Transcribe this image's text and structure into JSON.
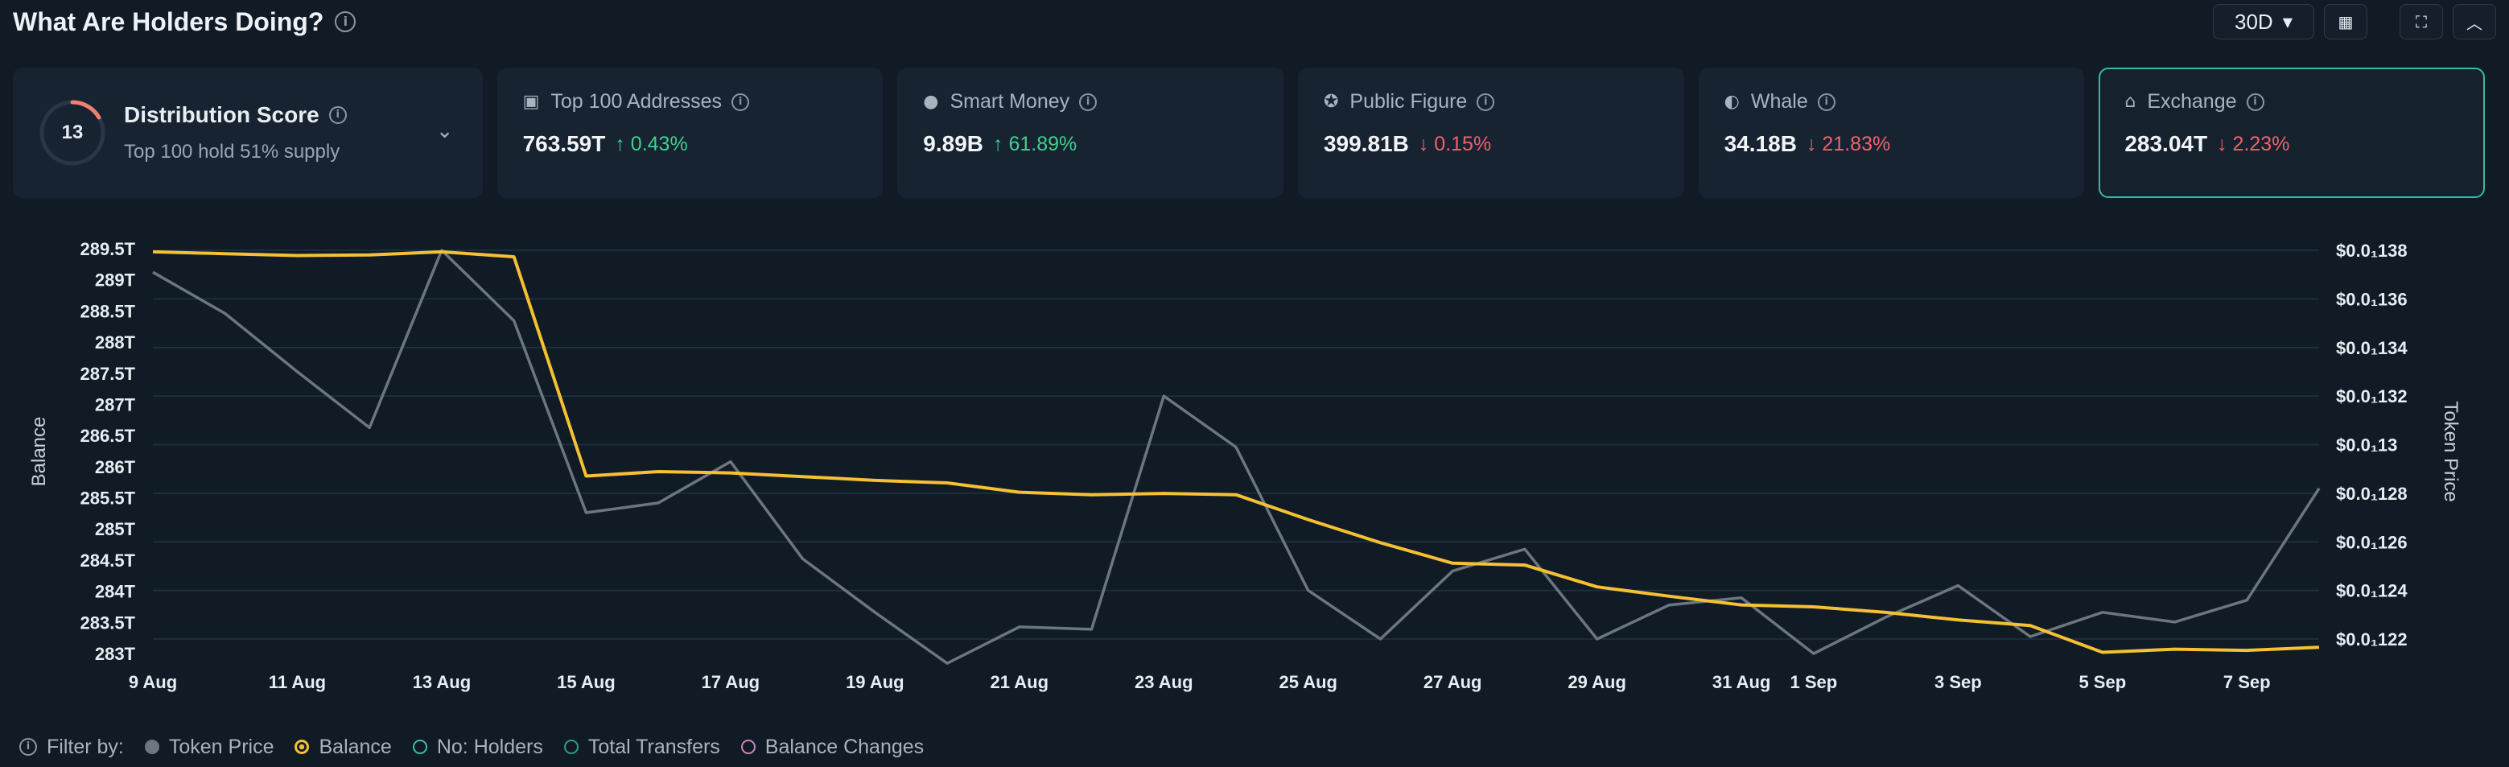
{
  "header": {
    "title": "What Are Holders Doing?",
    "period": "30D"
  },
  "distribution": {
    "score": "13",
    "title": "Distribution Score",
    "subtitle": "Top 100 hold 51% supply"
  },
  "cards": [
    {
      "label": "Top 100 Addresses",
      "value": "763.59T",
      "arrow": "↑",
      "change": "0.43%",
      "dir": "up"
    },
    {
      "label": "Smart Money",
      "value": "9.89B",
      "arrow": "↑",
      "change": "61.89%",
      "dir": "up"
    },
    {
      "label": "Public Figure",
      "value": "399.81B",
      "arrow": "↓",
      "change": "0.15%",
      "dir": "down"
    },
    {
      "label": "Whale",
      "value": "34.18B",
      "arrow": "↓",
      "change": "21.83%",
      "dir": "down"
    },
    {
      "label": "Exchange",
      "value": "283.04T",
      "arrow": "↓",
      "change": "2.23%",
      "dir": "down"
    }
  ],
  "chart_data": {
    "type": "line",
    "y_left_label": "Balance",
    "y_right_label": "Token Price",
    "y_left_ticks": [
      "283T",
      "283.5T",
      "284T",
      "284.5T",
      "285T",
      "285.5T",
      "286T",
      "286.5T",
      "287T",
      "287.5T",
      "288T",
      "288.5T",
      "289T",
      "289.5T"
    ],
    "y_left_range": [
      283,
      289.5
    ],
    "y_right_ticks": [
      "$0.0₁122",
      "$0.0₁124",
      "$0.0₁126",
      "$0.0₁128",
      "$0.0₁13",
      "$0.0₁132",
      "$0.0₁134",
      "$0.0₁136",
      "$0.0₁138"
    ],
    "y_right_range": [
      0.0122,
      0.0138
    ],
    "x_ticks": [
      "9 Aug",
      "11 Aug",
      "13 Aug",
      "15 Aug",
      "17 Aug",
      "19 Aug",
      "21 Aug",
      "23 Aug",
      "25 Aug",
      "27 Aug",
      "29 Aug",
      "31 Aug",
      "1 Sep",
      "3 Sep",
      "5 Sep",
      "7 Sep"
    ],
    "x": [
      "9 Aug",
      "10 Aug",
      "11 Aug",
      "12 Aug",
      "13 Aug",
      "14 Aug",
      "15 Aug",
      "16 Aug",
      "17 Aug",
      "18 Aug",
      "19 Aug",
      "20 Aug",
      "21 Aug",
      "22 Aug",
      "23 Aug",
      "24 Aug",
      "25 Aug",
      "26 Aug",
      "27 Aug",
      "28 Aug",
      "29 Aug",
      "30 Aug",
      "31 Aug",
      "1 Sep",
      "2 Sep",
      "3 Sep",
      "4 Sep",
      "5 Sep",
      "6 Sep",
      "7 Sep",
      "8 Sep"
    ],
    "series": [
      {
        "name": "Token Price",
        "axis": "right",
        "color": "#6b7681",
        "values": [
          0.01371,
          0.01354,
          0.0133,
          0.01307,
          0.0138,
          0.01351,
          0.01272,
          0.01276,
          0.01293,
          0.01253,
          0.01231,
          0.0121,
          0.01225,
          0.01224,
          0.0132,
          0.01299,
          0.0124,
          0.0122,
          0.01248,
          0.01257,
          0.0122,
          0.01234,
          0.01237,
          0.01214,
          0.01229,
          0.01242,
          0.01221,
          0.01231,
          0.01227,
          0.01236,
          0.01282
        ]
      },
      {
        "name": "Balance",
        "axis": "left",
        "color": "#f5c033",
        "values": [
          289.45,
          289.42,
          289.39,
          289.4,
          289.45,
          289.37,
          285.85,
          285.92,
          285.9,
          285.84,
          285.78,
          285.74,
          285.59,
          285.55,
          285.57,
          285.55,
          285.15,
          284.78,
          284.45,
          284.42,
          284.07,
          283.92,
          283.78,
          283.75,
          283.66,
          283.54,
          283.45,
          283.02,
          283.07,
          283.05,
          283.1
        ]
      }
    ],
    "grid": true
  },
  "filters": {
    "label": "Filter by:",
    "items": [
      {
        "label": "Token Price",
        "color": "#6b7681",
        "style": "filled"
      },
      {
        "label": "Balance",
        "color": "#f5c033",
        "style": "ring"
      },
      {
        "label": "No: Holders",
        "color": "#3fb9a5",
        "style": "outline"
      },
      {
        "label": "Total Transfers",
        "color": "#2a9e86",
        "style": "outline"
      },
      {
        "label": "Balance Changes",
        "color": "#c887b8",
        "style": "outline"
      }
    ]
  }
}
